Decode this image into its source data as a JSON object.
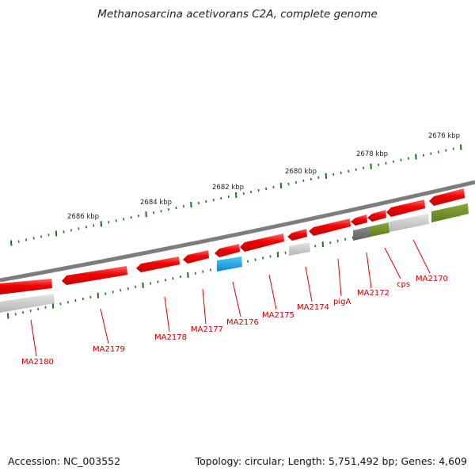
{
  "title": "Methanosarcina acetivorans C2A, complete genome",
  "footer": {
    "accession": "Accession: NC_003552",
    "summary": "Topology: circular; Length: 5,751,492 bp; Genes: 4,609"
  },
  "colors": {
    "backbone": "#7d7d7d",
    "tick": "#1f6f1f",
    "gene_red": "#ee0000",
    "gene_grey": "#c8c8c8",
    "gene_darkgrey": "#6f6f6f",
    "gene_olive": "#6f8f24",
    "gene_cyan": "#1aa3e0",
    "label": "#cc0000"
  },
  "scale_labels": [
    "2686 kbp",
    "2684 kbp",
    "2682 kbp",
    "2680 kbp",
    "2678 kbp",
    "2676 kbp"
  ],
  "gene_labels": [
    "MA2180",
    "MA2179",
    "MA2178",
    "MA2177",
    "MA2176",
    "MA2175",
    "MA2174",
    "pigA",
    "MA2172",
    "cps",
    "MA2170"
  ]
}
